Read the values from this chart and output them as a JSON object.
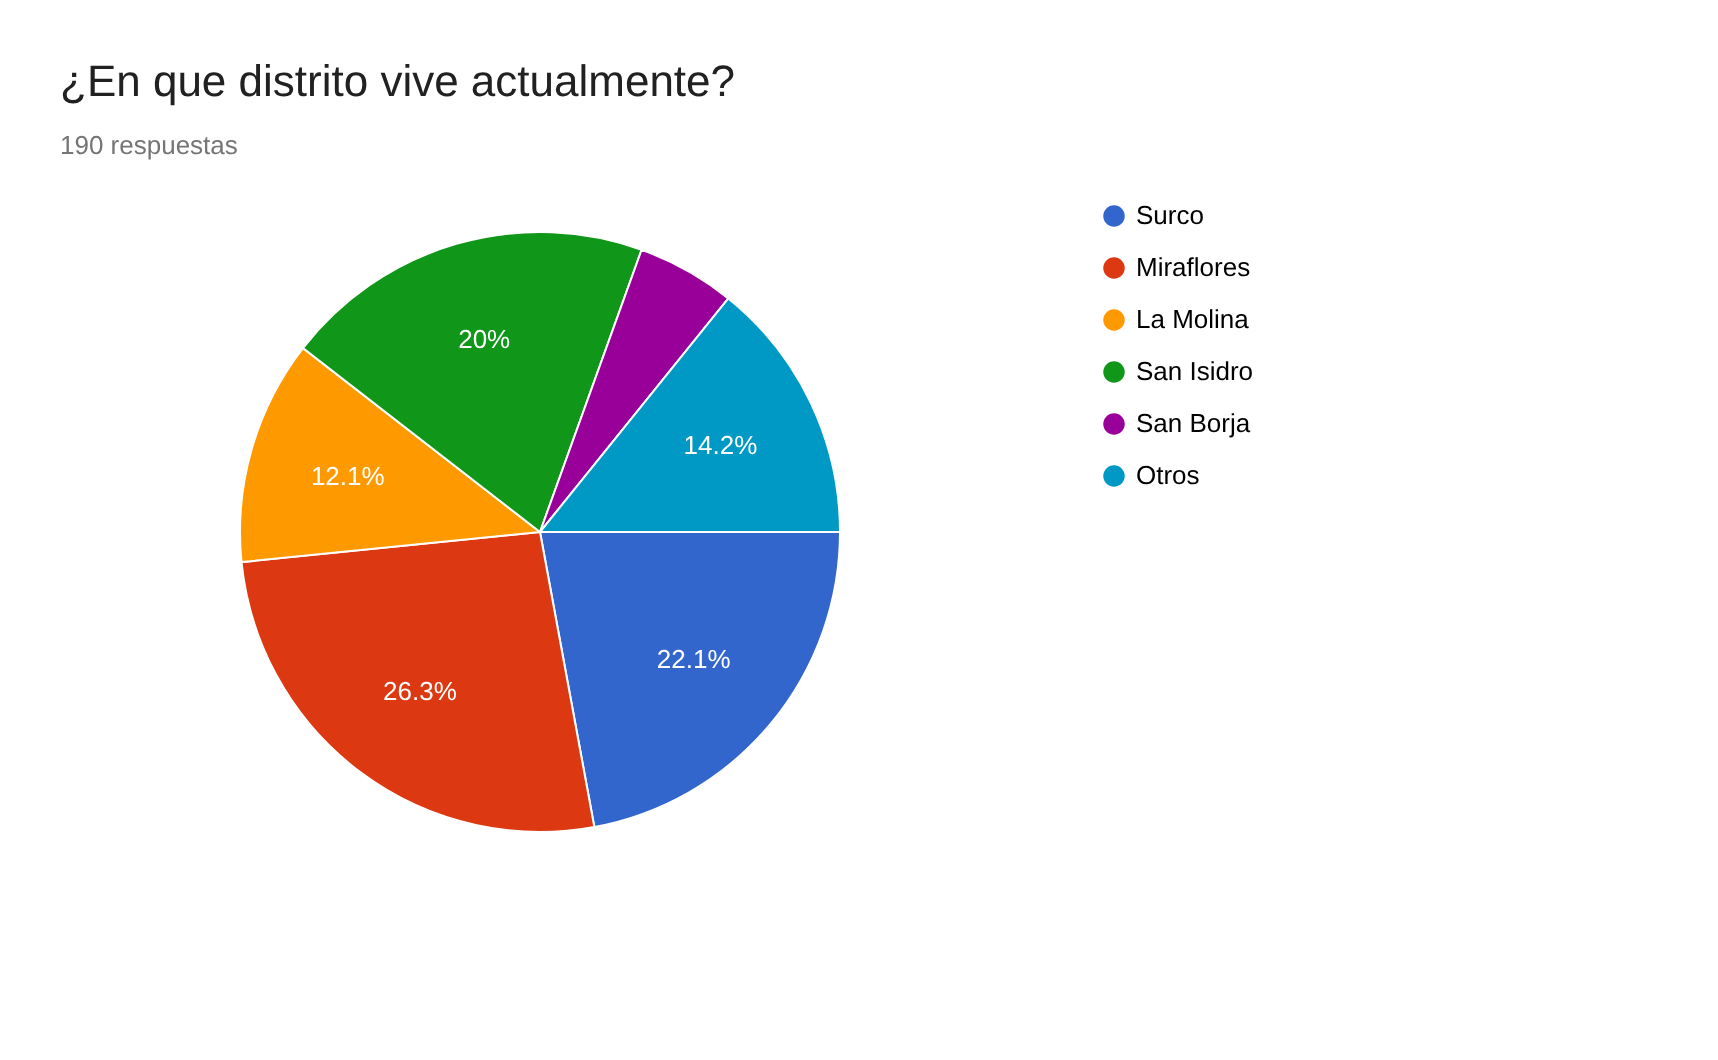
{
  "chart_data": {
    "type": "pie",
    "title": "¿En que distrito vive actualmente?",
    "subtitle": "190 respuestas",
    "categories": [
      "Surco",
      "Miraflores",
      "La Molina",
      "San Isidro",
      "San Borja",
      "Otros"
    ],
    "values": [
      22.1,
      26.3,
      12.1,
      20,
      5.3,
      14.2
    ],
    "colors": [
      "#3366cc",
      "#dc3912",
      "#ff9900",
      "#109618",
      "#990099",
      "#0099c6"
    ],
    "value_labels": [
      "22.1%",
      "26.3%",
      "12.1%",
      "20%",
      null,
      "14.2%"
    ],
    "legend": "right"
  }
}
